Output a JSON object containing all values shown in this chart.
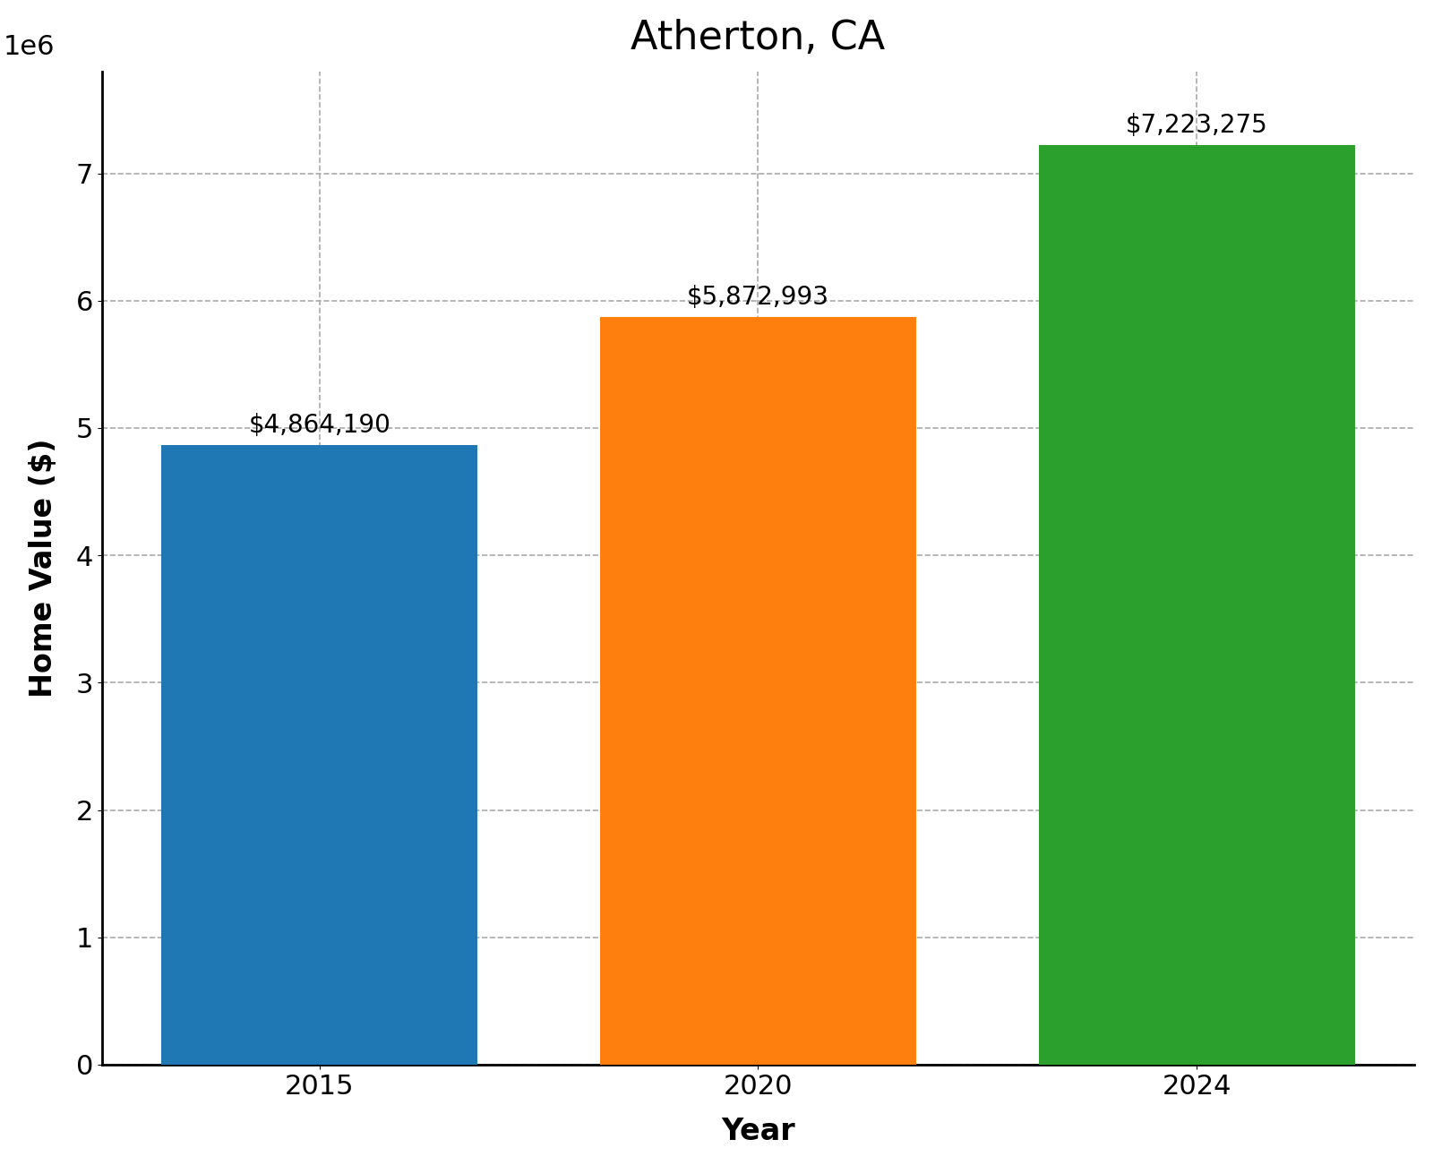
{
  "title": "Atherton, CA",
  "xlabel": "Year",
  "ylabel": "Home Value ($)",
  "categories": [
    "2015",
    "2020",
    "2024"
  ],
  "values": [
    4864190,
    5872993,
    7223275
  ],
  "bar_colors": [
    "#1f77b4",
    "#ff7f0e",
    "#2ca02c"
  ],
  "labels": [
    "$4,864,190",
    "$5,872,993",
    "$7,223,275"
  ],
  "ylim": [
    0,
    7800000
  ],
  "yticks": [
    0,
    1000000,
    2000000,
    3000000,
    4000000,
    5000000,
    6000000,
    7000000
  ],
  "title_fontsize": 32,
  "axis_label_fontsize": 24,
  "tick_fontsize": 22,
  "bar_label_fontsize": 20,
  "grid_color": "#aaaaaa",
  "grid_linestyle": "--",
  "background_color": "#ffffff",
  "bar_width": 0.72
}
